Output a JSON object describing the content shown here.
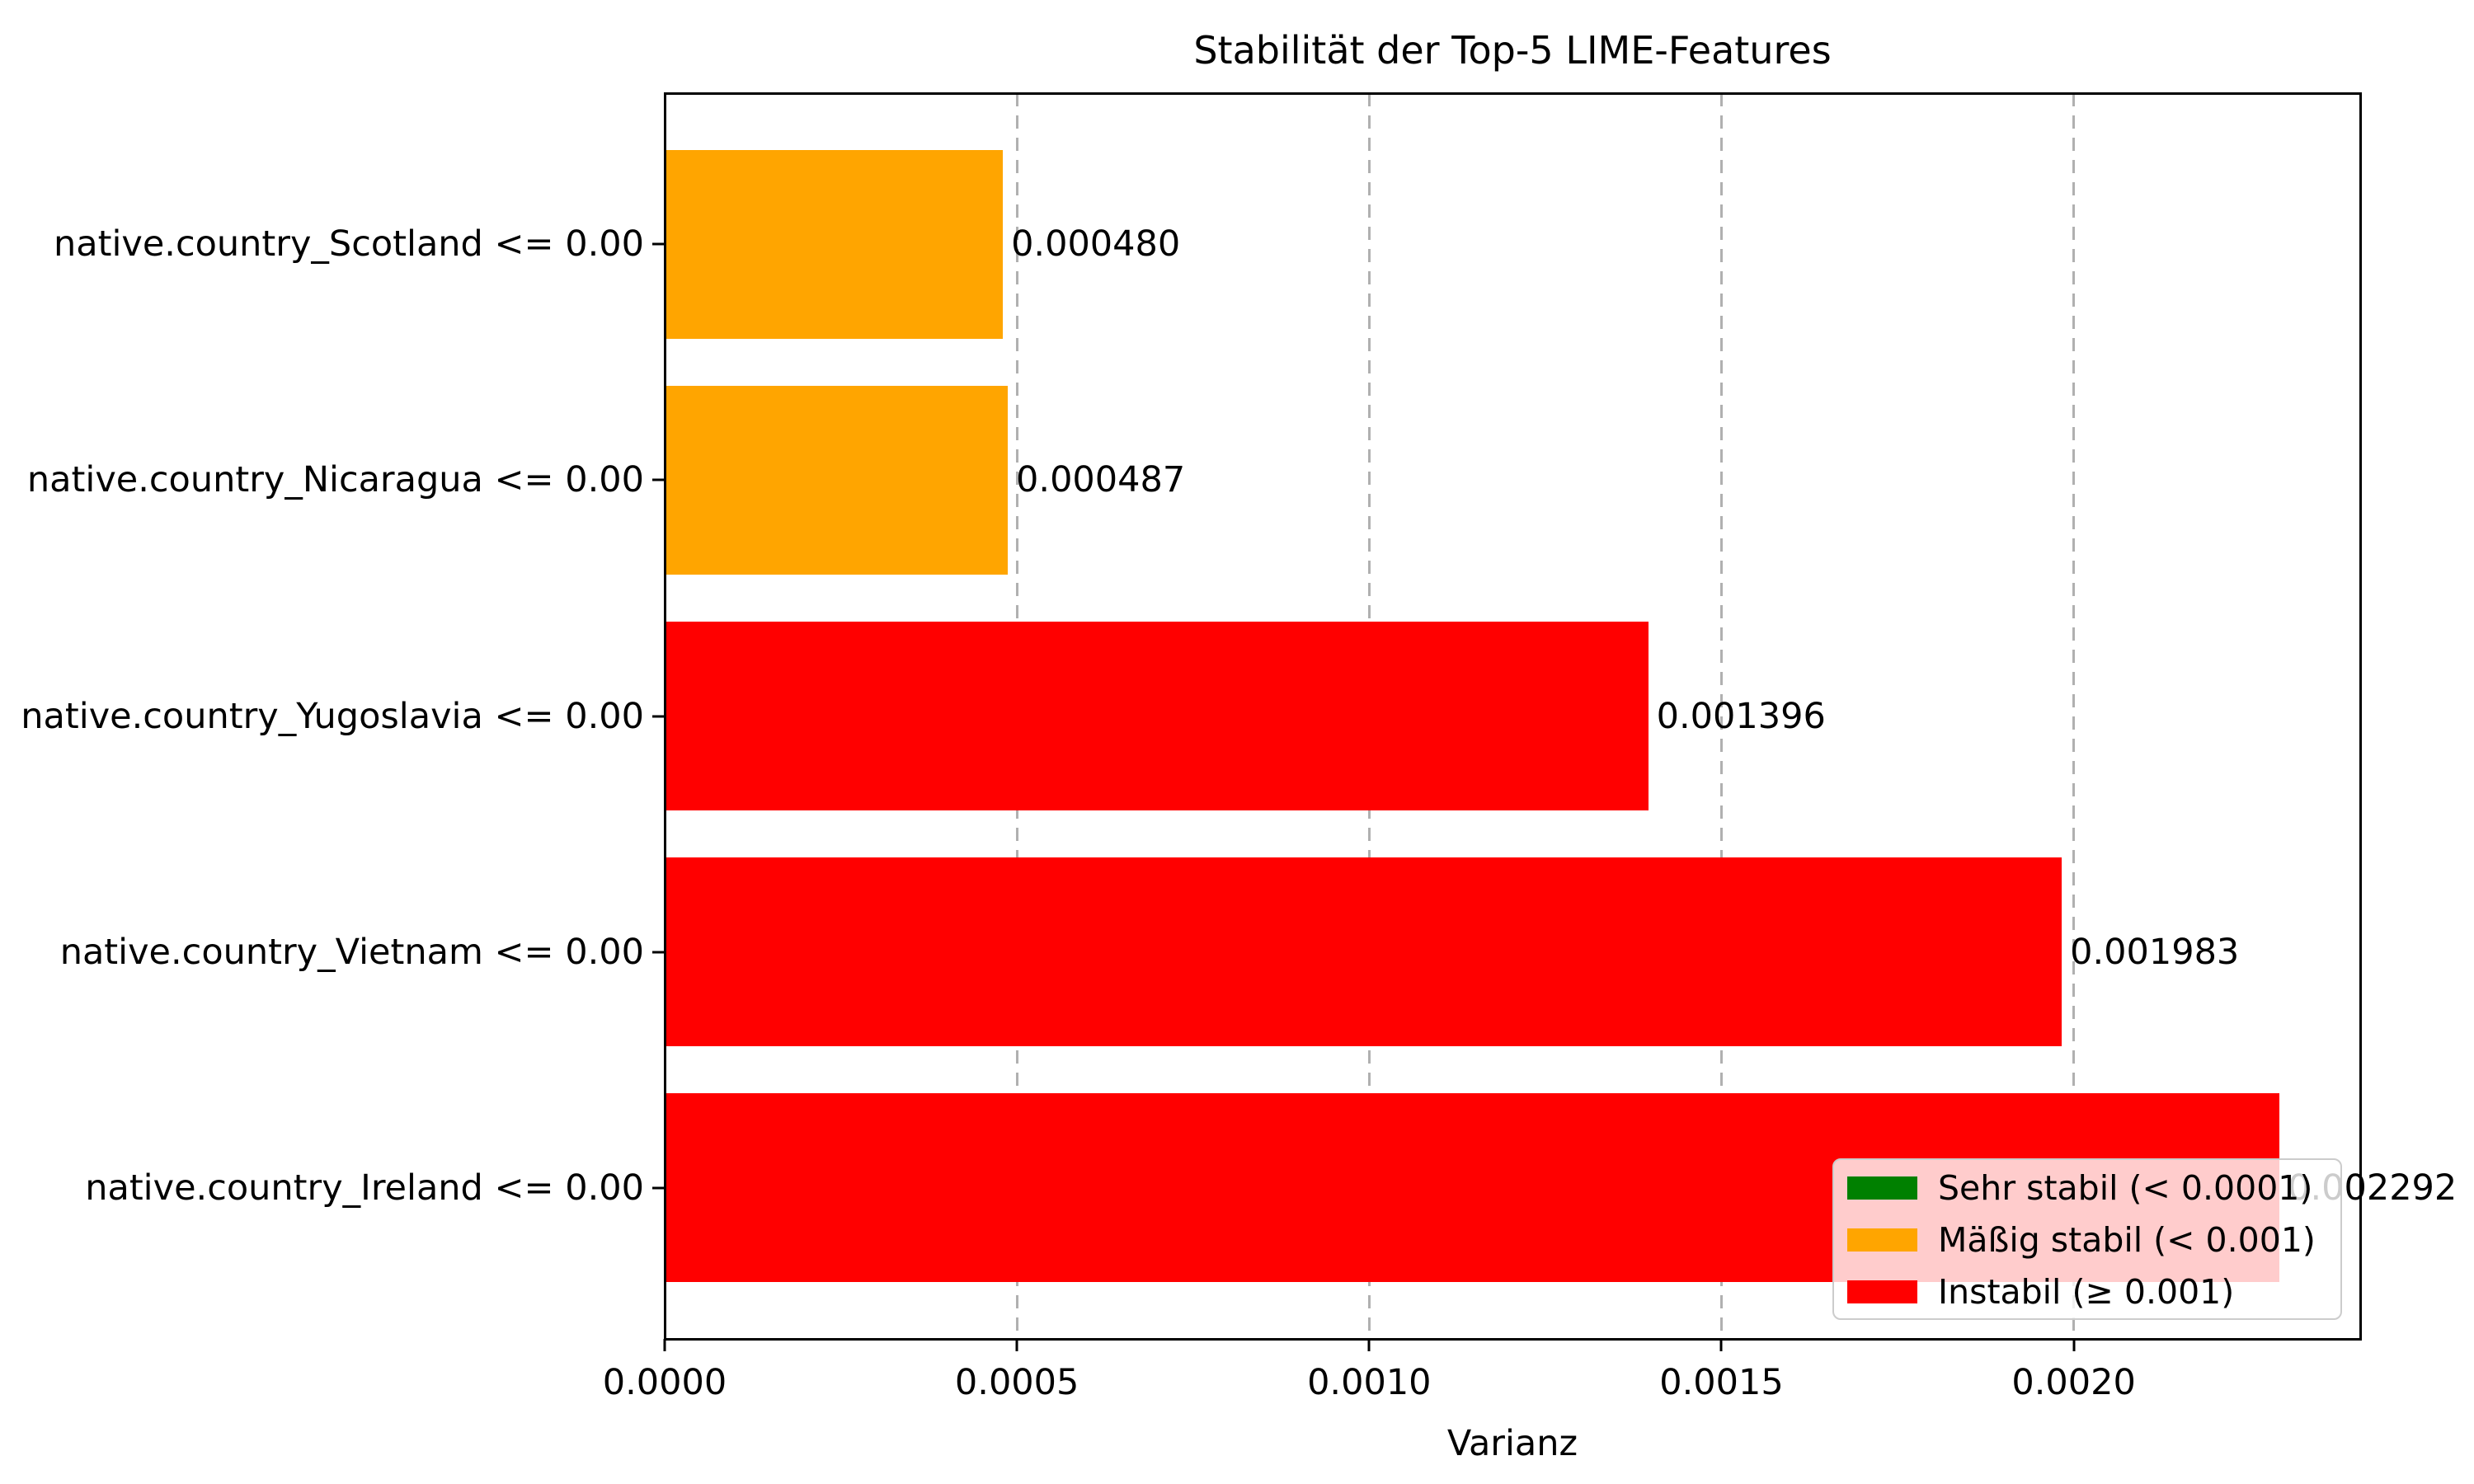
{
  "figure": {
    "title": "Stabilität der Top-5 LIME-Features"
  },
  "chart_data": {
    "type": "bar",
    "orientation": "horizontal",
    "title": "Stabilität der Top-5 LIME-Features",
    "xlabel": "Varianz",
    "ylabel": "",
    "categories": [
      "native.country_Scotland <= 0.00",
      "native.country_Nicaragua <= 0.00",
      "native.country_Yugoslavia <= 0.00",
      "native.country_Vietnam <= 0.00",
      "native.country_Ireland <= 0.00"
    ],
    "values": [
      0.00048,
      0.000487,
      0.001396,
      0.001983,
      0.002292
    ],
    "value_labels": [
      "0.000480",
      "0.000487",
      "0.001396",
      "0.001983",
      "0.002292"
    ],
    "bar_colors": [
      "#ffa500",
      "#ffa500",
      "#ff0000",
      "#ff0000",
      "#ff0000"
    ],
    "x_ticks": [
      0.0,
      0.0005,
      0.001,
      0.0015,
      0.002
    ],
    "x_tick_labels": [
      "0.0000",
      "0.0005",
      "0.0010",
      "0.0015",
      "0.0020"
    ],
    "xlim": [
      0,
      0.0024066
    ],
    "grid": "vertical-dashed",
    "gridline_color": "#b0b0b0",
    "legend": {
      "position": "lower right",
      "items": [
        {
          "label": "Sehr stabil (< 0.0001)",
          "color": "#008000"
        },
        {
          "label": "Mäßig stabil (< 0.001)",
          "color": "#ffa500"
        },
        {
          "label": "Instabil (≥ 0.001)",
          "color": "#ff0000"
        }
      ]
    }
  }
}
